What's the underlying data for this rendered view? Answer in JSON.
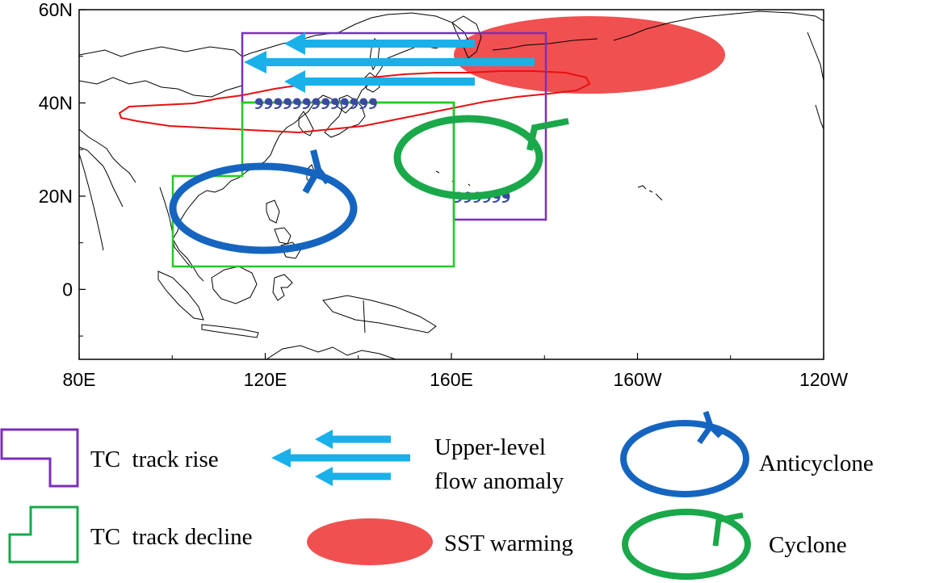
{
  "map": {
    "lat_ticks": [
      {
        "label": "60N",
        "lat": 60
      },
      {
        "label": "40N",
        "lat": 40
      },
      {
        "label": "20N",
        "lat": 20
      },
      {
        "label": "0",
        "lat": 0
      }
    ],
    "lon_ticks": [
      {
        "label": "80E",
        "lon": 80
      },
      {
        "label": "120E",
        "lon": 120
      },
      {
        "label": "160E",
        "lon": 160
      },
      {
        "label": "160W",
        "lon": 200
      },
      {
        "label": "120W",
        "lon": 240
      }
    ],
    "lon_range": [
      80,
      240
    ],
    "lat_range": [
      -15,
      60
    ]
  },
  "legend": {
    "rise_label": "TC  track rise",
    "decline_label": "TC  track decline",
    "flow_label_1": "Upper-level",
    "flow_label_2": "flow anomaly",
    "sst_label": "SST warming",
    "anticyclone_label": "Anticyclone",
    "cyclone_label": "Cyclone"
  },
  "colors": {
    "rise": "#7b2fbe",
    "decline": "#22cc22",
    "flow": "#1ab0ea",
    "sst": "#f05050",
    "anticyclone": "#1565c0",
    "cyclone": "#1aa84a",
    "tc_symbol": "#3a4aa0",
    "sst_contour": "#e81010"
  }
}
